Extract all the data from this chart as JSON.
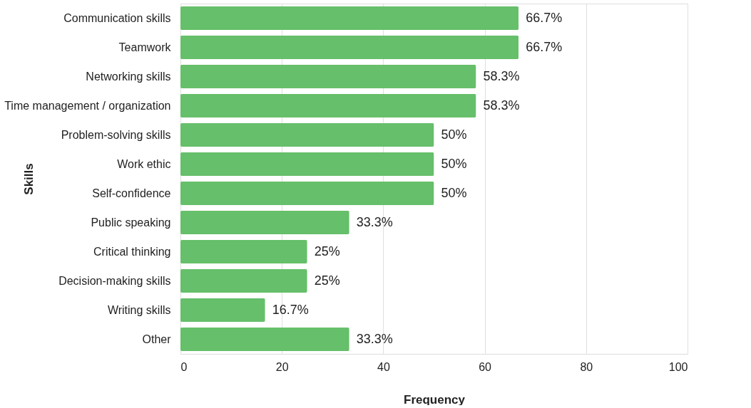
{
  "chart_data": {
    "type": "bar",
    "orientation": "horizontal",
    "xlabel": "Frequency",
    "ylabel": "Skills",
    "categories": [
      "Communication skills",
      "Teamwork",
      "Networking skills",
      "Time management / organization",
      "Problem-solving skills",
      "Work ethic",
      "Self-confidence",
      "Public speaking",
      "Critical thinking",
      "Decision-making skills",
      "Writing skills",
      "Other"
    ],
    "values": [
      66.7,
      66.7,
      58.3,
      58.3,
      50,
      50,
      50,
      33.3,
      25,
      25,
      16.7,
      33.3
    ],
    "value_labels": [
      "66.7%",
      "66.7%",
      "58.3%",
      "58.3%",
      "50%",
      "50%",
      "50%",
      "33.3%",
      "25%",
      "25%",
      "16.7%",
      "33.3%"
    ],
    "color": "#66bf6a",
    "xlim": [
      0,
      100
    ],
    "xticks": [
      0,
      20,
      40,
      60,
      80,
      100
    ],
    "grid": "x"
  }
}
